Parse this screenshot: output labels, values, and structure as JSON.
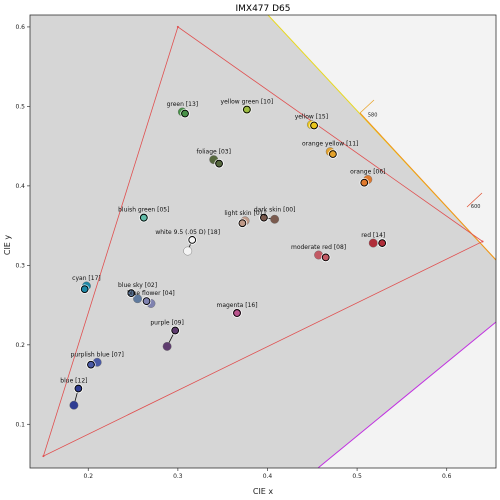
{
  "chart_data": {
    "type": "scatter",
    "title": "IMX477 D65",
    "xlabel": "CIE x",
    "ylabel": "CIE y",
    "xlim": [
      0.135,
      0.655
    ],
    "ylim": [
      0.045,
      0.615
    ],
    "x_ticks": [
      "0.2",
      "0.3",
      "0.4",
      "0.5",
      "0.6"
    ],
    "y_ticks": [
      "0.1",
      "0.2",
      "0.3",
      "0.4",
      "0.5",
      "0.6"
    ],
    "x_tick_values": [
      0.2,
      0.3,
      0.4,
      0.5,
      0.6
    ],
    "y_tick_values": [
      0.1,
      0.2,
      0.3,
      0.4,
      0.5,
      0.6
    ],
    "grid": false,
    "gamut_triangle": [
      [
        0.64,
        0.33
      ],
      [
        0.3,
        0.6
      ],
      [
        0.15,
        0.06
      ]
    ],
    "wavelength_labels": [
      {
        "text": "580",
        "x": 0.512,
        "y": 0.487
      },
      {
        "text": "600",
        "x": 0.627,
        "y": 0.372
      }
    ],
    "patches": [
      {
        "label": "dark skin [00]",
        "ref": [
          0.408,
          0.358
        ],
        "meas": [
          0.396,
          0.36
        ],
        "color": "#7a5a4e"
      },
      {
        "label": "light skin [01]",
        "ref": [
          0.375,
          0.356
        ],
        "meas": [
          0.372,
          0.353
        ],
        "color": "#c09a88"
      },
      {
        "label": "blue sky [02]",
        "ref": [
          0.255,
          0.258
        ],
        "meas": [
          0.248,
          0.265
        ],
        "color": "#5f7a9e"
      },
      {
        "label": "blue flower [04]",
        "ref": [
          0.27,
          0.252
        ],
        "meas": [
          0.265,
          0.255
        ],
        "color": "#7f82b0"
      },
      {
        "label": "foliage [03]",
        "ref": [
          0.34,
          0.433
        ],
        "meas": [
          0.346,
          0.428
        ],
        "color": "#56683e"
      },
      {
        "label": "bluish green [05]",
        "ref": [
          0.262,
          0.36
        ],
        "meas": [
          0.262,
          0.36
        ],
        "color": "#61bda9"
      },
      {
        "label": "orange [06]",
        "ref": [
          0.512,
          0.408
        ],
        "meas": [
          0.508,
          0.404
        ],
        "color": "#e07a2e"
      },
      {
        "label": "purplish blue [07]",
        "ref": [
          0.21,
          0.178
        ],
        "meas": [
          0.203,
          0.175
        ],
        "color": "#4a5aa5"
      },
      {
        "label": "moderate red [08]",
        "ref": [
          0.457,
          0.313
        ],
        "meas": [
          0.465,
          0.31
        ],
        "color": "#c25a64"
      },
      {
        "label": "purple [09]",
        "ref": [
          0.288,
          0.198
        ],
        "meas": [
          0.297,
          0.218
        ],
        "color": "#5e3c6e"
      },
      {
        "label": "yellow green [10]",
        "ref": [
          0.377,
          0.496
        ],
        "meas": [
          0.377,
          0.496
        ],
        "color": "#9dbc40"
      },
      {
        "label": "orange yellow [11]",
        "ref": [
          0.47,
          0.443
        ],
        "meas": [
          0.473,
          0.44
        ],
        "color": "#e4a22c"
      },
      {
        "label": "blue [12]",
        "ref": [
          0.184,
          0.124
        ],
        "meas": [
          0.189,
          0.145
        ],
        "color": "#2e3c92"
      },
      {
        "label": "green [13]",
        "ref": [
          0.305,
          0.493
        ],
        "meas": [
          0.308,
          0.491
        ],
        "color": "#489248"
      },
      {
        "label": "red [14]",
        "ref": [
          0.518,
          0.328
        ],
        "meas": [
          0.528,
          0.328
        ],
        "color": "#b02e3a"
      },
      {
        "label": "yellow [15]",
        "ref": [
          0.449,
          0.477
        ],
        "meas": [
          0.452,
          0.476
        ],
        "color": "#eac61c"
      },
      {
        "label": "magenta [16]",
        "ref": [
          0.366,
          0.24
        ],
        "meas": [
          0.366,
          0.24
        ],
        "color": "#ba548e"
      },
      {
        "label": "cyan [17]",
        "ref": [
          0.198,
          0.274
        ],
        "meas": [
          0.196,
          0.27
        ],
        "color": "#1e88a6"
      },
      {
        "label": "white 9.5 (.05 D) [18]",
        "ref": [
          0.311,
          0.318
        ],
        "meas": [
          0.316,
          0.332
        ],
        "color": "#f4f4f4"
      }
    ]
  }
}
